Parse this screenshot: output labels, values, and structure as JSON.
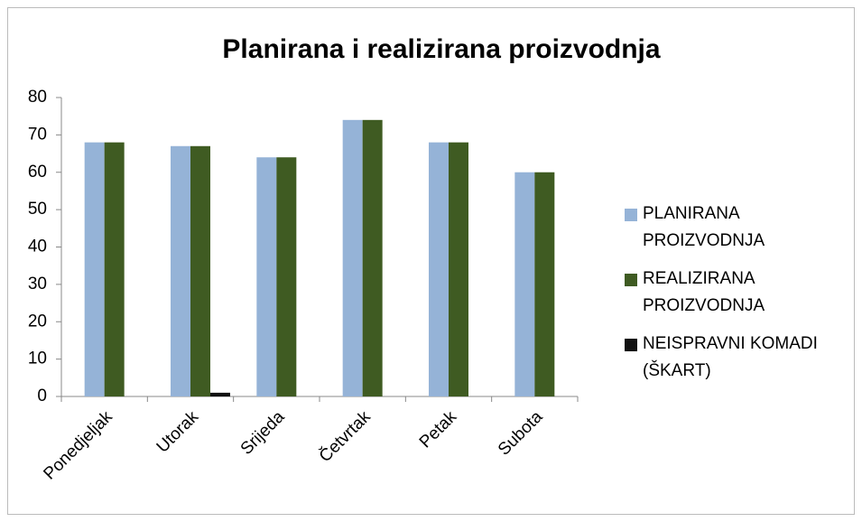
{
  "chart_data": {
    "type": "bar",
    "title": "Planirana i realizirana proizvodnja",
    "categories": [
      "Ponedjeljak",
      "Utorak",
      "Srijeda",
      "Četvrtak",
      "Petak",
      "Subota"
    ],
    "series": [
      {
        "name": "PLANIRANA PROIZVODNJA",
        "color": "#95b3d7",
        "values": [
          68,
          67,
          64,
          74,
          68,
          60
        ]
      },
      {
        "name": "REALIZIRANA PROIZVODNJA",
        "color": "#3f5b22",
        "values": [
          68,
          67,
          64,
          74,
          68,
          60
        ]
      },
      {
        "name": "NEISPRAVNI KOMADI (ŠKART)",
        "color": "#111111",
        "values": [
          0,
          1,
          0,
          0,
          0,
          0
        ]
      }
    ],
    "ylim": [
      0,
      80
    ],
    "yticks": [
      0,
      10,
      20,
      30,
      40,
      50,
      60,
      70,
      80
    ],
    "legend": "right"
  }
}
